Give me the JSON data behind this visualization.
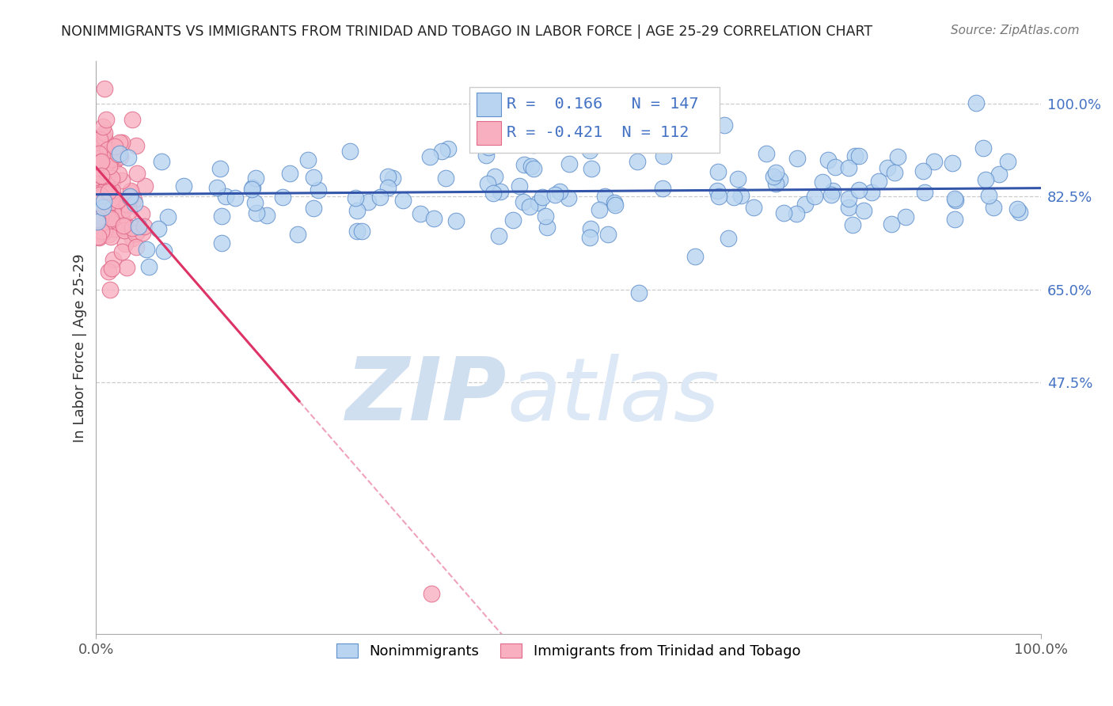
{
  "title": "NONIMMIGRANTS VS IMMIGRANTS FROM TRINIDAD AND TOBAGO IN LABOR FORCE | AGE 25-29 CORRELATION CHART",
  "source_text": "Source: ZipAtlas.com",
  "ylabel": "In Labor Force | Age 25-29",
  "xlim": [
    0.0,
    1.0
  ],
  "ylim": [
    0.0,
    1.08
  ],
  "right_ytick_labels": [
    "100.0%",
    "82.5%",
    "65.0%",
    "47.5%"
  ],
  "right_ytick_values": [
    1.0,
    0.825,
    0.65,
    0.475
  ],
  "xtick_labels": [
    "0.0%",
    "100.0%"
  ],
  "xtick_values": [
    0.0,
    1.0
  ],
  "blue_R": 0.166,
  "blue_N": 147,
  "pink_R": -0.421,
  "pink_N": 112,
  "blue_color": "#b8d4f0",
  "blue_edge": "#6090cc",
  "pink_color": "#f8b0c0",
  "pink_edge": "#e06888",
  "trend_blue": "#3355aa",
  "trend_pink": "#dd3366",
  "watermark_zip": "ZIP",
  "watermark_atlas": "atlas",
  "watermark_color": "#d0dff0",
  "legend_blue_label": "Nonimmigrants",
  "legend_pink_label": "Immigrants from Trinidad and Tobago"
}
